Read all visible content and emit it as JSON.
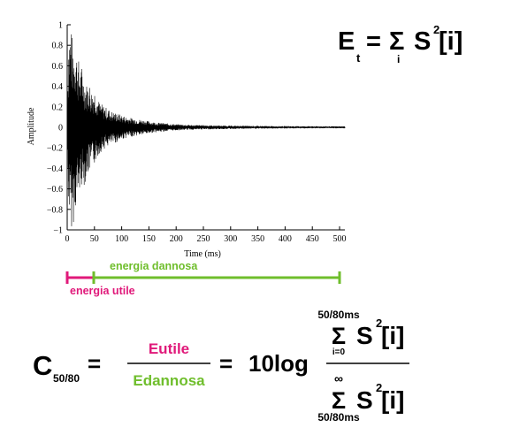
{
  "chart_data": {
    "type": "line",
    "xlabel": "Time (ms)",
    "ylabel": "Amplitude",
    "xlim": [
      0,
      515
    ],
    "ylim": [
      -1,
      1
    ],
    "x_ticks": [
      "0",
      "50",
      "100",
      "150",
      "200",
      "250",
      "300",
      "350",
      "400",
      "450",
      "500"
    ],
    "y_ticks": [
      "1",
      "0.8",
      "0.6",
      "0.4",
      "0.2",
      "0",
      "−0.2",
      "−0.4",
      "−0.6",
      "−0.8",
      "−1"
    ],
    "series": [
      {
        "x": [
          0,
          3,
          6,
          9,
          12,
          15,
          18,
          21,
          24,
          27,
          30,
          35,
          40,
          45,
          50,
          55,
          60,
          70,
          80,
          90,
          100,
          110,
          120,
          130,
          140,
          150,
          160,
          170,
          180,
          190,
          200,
          220,
          240,
          260,
          280,
          300,
          320,
          340,
          360,
          380,
          400,
          420,
          440,
          460,
          480,
          500,
          510
        ],
        "upper": [
          0.2,
          0.95,
          1.0,
          0.9,
          0.8,
          0.88,
          0.72,
          0.66,
          0.58,
          0.6,
          0.5,
          0.42,
          0.45,
          0.36,
          0.38,
          0.3,
          0.24,
          0.2,
          0.16,
          0.14,
          0.12,
          0.1,
          0.09,
          0.08,
          0.07,
          0.06,
          0.05,
          0.045,
          0.04,
          0.035,
          0.03,
          0.025,
          0.022,
          0.02,
          0.018,
          0.016,
          0.015,
          0.014,
          0.013,
          0.012,
          0.012,
          0.011,
          0.011,
          0.01,
          0.01,
          0.01,
          0.01
        ],
        "lower": [
          -0.2,
          -0.85,
          -0.95,
          -1.0,
          -0.92,
          -0.8,
          -0.75,
          -0.7,
          -0.62,
          -0.55,
          -0.6,
          -0.5,
          -0.45,
          -0.4,
          -0.36,
          -0.3,
          -0.25,
          -0.2,
          -0.17,
          -0.15,
          -0.12,
          -0.1,
          -0.09,
          -0.08,
          -0.07,
          -0.06,
          -0.05,
          -0.045,
          -0.04,
          -0.035,
          -0.03,
          -0.025,
          -0.022,
          -0.02,
          -0.018,
          -0.016,
          -0.015,
          -0.014,
          -0.013,
          -0.012,
          -0.012,
          -0.011,
          -0.011,
          -0.01,
          -0.01,
          -0.01,
          -0.01
        ]
      }
    ]
  },
  "colors": {
    "utile": "#e0197a",
    "dannosa": "#6fbe2c",
    "ink": "#000000"
  },
  "timeline": {
    "utile_label": "energia utile",
    "dannosa_label": "energia dannosa",
    "utile_range_ms": [
      0,
      50
    ],
    "dannosa_range_ms": [
      50,
      500
    ]
  },
  "formula_energy": {
    "E": "E",
    "E_sub": "t",
    "equals": "=",
    "sigma": "Σ",
    "sigma_sub": "i",
    "S": "S",
    "S_sup": "2",
    "index": "[i]"
  },
  "formula_clarity": {
    "C": "C",
    "C_sub": "50/80",
    "equals1": "=",
    "numerator": "Eutile",
    "denominator": "Edannosa",
    "equals2": "=",
    "tenlog": "10log",
    "num_sigma": "Σ",
    "num_sigma_top": "50/80ms",
    "num_sigma_bottom": "i=0",
    "num_S": "S",
    "num_S_sup": "2",
    "num_index": "[i]",
    "den_sigma": "Σ",
    "den_sigma_top": "∞",
    "den_sigma_bottom": "50/80ms",
    "den_S": "S",
    "den_S_sup": "2",
    "den_index": "[i]"
  }
}
